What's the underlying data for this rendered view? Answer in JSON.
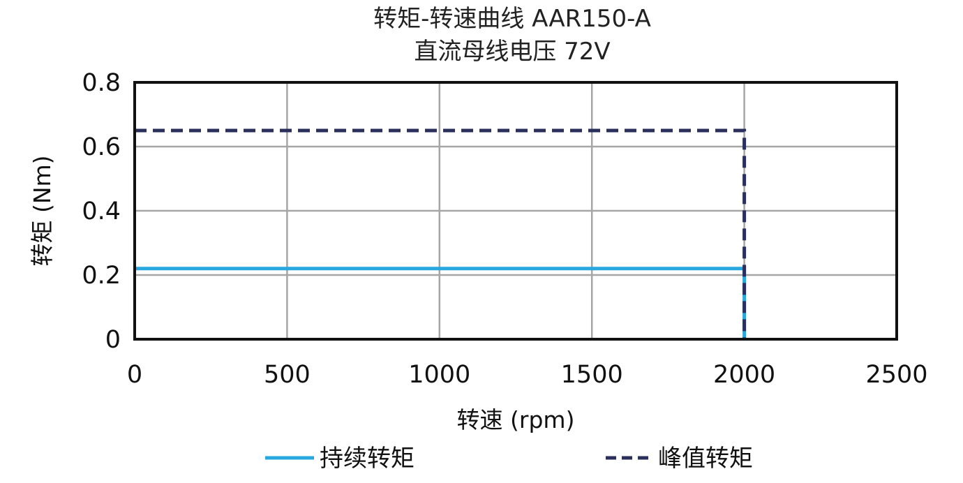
{
  "title": {
    "line1": "转矩-转速曲线 AAR150-A",
    "line2": "直流母线电压 72V"
  },
  "colors": {
    "continuous": "#29a8df",
    "peak": "#2a2f5b",
    "grid": "#a6a6a6",
    "frame": "#111111"
  },
  "chart_data": {
    "type": "line",
    "title": "转矩-转速曲线 AAR150-A\n直流母线电压 72V",
    "xlabel": "转速 (rpm)",
    "ylabel": "转矩 (Nm)",
    "xlim": [
      0,
      2500
    ],
    "ylim": [
      0,
      0.8
    ],
    "xticks": [
      0,
      500,
      1000,
      1500,
      2000,
      2500
    ],
    "xtick_labels": [
      "0",
      "500",
      "1000",
      "1500",
      "2000",
      "2500"
    ],
    "yticks": [
      0,
      0.2,
      0.4,
      0.6,
      0.8
    ],
    "ytick_labels": [
      "0",
      "0.2",
      "0.4",
      "0.6",
      "0.8"
    ],
    "grid": true,
    "legend": "bottom",
    "series": [
      {
        "name": "持续转矩",
        "style": "solid",
        "color": "#29a8df",
        "points": [
          [
            0,
            0.22
          ],
          [
            2000,
            0.22
          ],
          [
            2000,
            0
          ]
        ]
      },
      {
        "name": "峰值转矩",
        "style": "dashed",
        "color": "#2a2f5b",
        "points": [
          [
            0,
            0.65
          ],
          [
            2000,
            0.65
          ],
          [
            2000,
            0
          ]
        ]
      }
    ]
  }
}
